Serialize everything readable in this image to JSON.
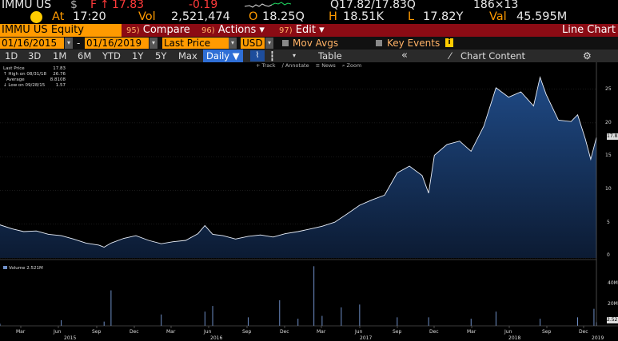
{
  "quote": {
    "ticker": "IMMU US",
    "currency": "$",
    "price_prefix": "F",
    "arrow": "↑",
    "price": "17.83",
    "change": "-0.19",
    "bid_ask": "Q17.82/17.83Q",
    "size": "186×13",
    "time_label": "At",
    "time": "17:20",
    "vol_label": "Vol",
    "volume": "2,521,474",
    "open_label": "O",
    "open": "18.25Q",
    "high_label": "H",
    "high": "18.51K",
    "low_label": "L",
    "low": "17.82Y",
    "val_label": "Val",
    "value": "45.595M"
  },
  "menubar": {
    "ticker_box": "IMMU US Equity",
    "compare_num": "95)",
    "compare": "Compare",
    "actions_num": "96)",
    "actions": "Actions ▾",
    "edit_num": "97)",
    "edit": "Edit ▾",
    "title": "Line Chart"
  },
  "settings": {
    "start_date": "01/16/2015",
    "dash": "-",
    "end_date": "01/16/2019",
    "field": "Last Price",
    "currency": "USD",
    "mov_avgs": "Mov Avgs",
    "key_events": "Key Events"
  },
  "toolbar": {
    "periods": [
      "1D",
      "3D",
      "1M",
      "6M",
      "YTD",
      "1Y",
      "5Y",
      "Max"
    ],
    "interval": "Daily ▼",
    "table": "Table",
    "collapse": "«",
    "chart_content": "Chart Content",
    "settings_icon": "gear-icon"
  },
  "chart_tools": [
    "+ Track",
    "∕ Annotate",
    "≡ News",
    "⌕ Zoom"
  ],
  "legend": {
    "last_price_label": "Last Price",
    "last_price": "17.83",
    "high_label": "↑ High on 08/31/18",
    "high": "26.76",
    "average_label": "Average",
    "average": "8.8108",
    "low_label": "↓ Low on 09/28/15",
    "low": "1.57"
  },
  "volume_legend": "Volume 2.521M",
  "y_axis_price": [
    "25",
    "20",
    "15",
    "10",
    "5",
    "0"
  ],
  "y_axis_volume": [
    "40M",
    "20M"
  ],
  "last_price_tag": "17.83",
  "last_volume_tag": "2.52",
  "x_months": [
    "Mar",
    "Jun",
    "Sep",
    "Dec",
    "Mar",
    "Jun",
    "Sep",
    "Dec",
    "Mar",
    "Jun",
    "Sep",
    "Dec",
    "Mar",
    "Jun",
    "Sep",
    "Dec"
  ],
  "x_years": [
    "2015",
    "2016",
    "2017",
    "2018",
    "2019"
  ],
  "colors": {
    "accent": "#ff9a00",
    "menubar": "#8b0b14",
    "line": "#e8eef8",
    "area_top": "#1f4a86",
    "area_bottom": "#0c1b33",
    "volume": "#6f8fc7"
  },
  "chart_data": {
    "type": "area",
    "title": "",
    "x_start": "2015-01-16",
    "x_end": "2019-01-16",
    "ylim": [
      0,
      28.5
    ],
    "price_series": [
      {
        "x": "2015-01-16",
        "y": 4.9
      },
      {
        "x": "2015-02-15",
        "y": 4.3
      },
      {
        "x": "2015-03-15",
        "y": 3.9
      },
      {
        "x": "2015-04-15",
        "y": 4.0
      },
      {
        "x": "2015-05-15",
        "y": 3.5
      },
      {
        "x": "2015-06-15",
        "y": 3.3
      },
      {
        "x": "2015-07-15",
        "y": 2.8
      },
      {
        "x": "2015-08-15",
        "y": 2.2
      },
      {
        "x": "2015-09-15",
        "y": 1.9
      },
      {
        "x": "2015-09-28",
        "y": 1.6
      },
      {
        "x": "2015-10-15",
        "y": 2.2
      },
      {
        "x": "2015-11-15",
        "y": 2.9
      },
      {
        "x": "2015-12-15",
        "y": 3.3
      },
      {
        "x": "2016-01-15",
        "y": 2.6
      },
      {
        "x": "2016-02-15",
        "y": 2.1
      },
      {
        "x": "2016-03-15",
        "y": 2.4
      },
      {
        "x": "2016-04-15",
        "y": 2.6
      },
      {
        "x": "2016-05-15",
        "y": 3.6
      },
      {
        "x": "2016-06-01",
        "y": 4.8
      },
      {
        "x": "2016-06-20",
        "y": 3.5
      },
      {
        "x": "2016-07-15",
        "y": 3.3
      },
      {
        "x": "2016-08-15",
        "y": 2.8
      },
      {
        "x": "2016-09-15",
        "y": 3.2
      },
      {
        "x": "2016-10-15",
        "y": 3.4
      },
      {
        "x": "2016-11-15",
        "y": 3.1
      },
      {
        "x": "2016-12-15",
        "y": 3.6
      },
      {
        "x": "2017-01-15",
        "y": 3.9
      },
      {
        "x": "2017-02-15",
        "y": 4.3
      },
      {
        "x": "2017-03-15",
        "y": 4.7
      },
      {
        "x": "2017-04-15",
        "y": 5.3
      },
      {
        "x": "2017-05-15",
        "y": 6.5
      },
      {
        "x": "2017-06-15",
        "y": 7.8
      },
      {
        "x": "2017-07-15",
        "y": 8.6
      },
      {
        "x": "2017-08-15",
        "y": 9.3
      },
      {
        "x": "2017-09-15",
        "y": 12.6
      },
      {
        "x": "2017-10-15",
        "y": 13.6
      },
      {
        "x": "2017-11-15",
        "y": 12.2
      },
      {
        "x": "2017-12-01",
        "y": 9.6
      },
      {
        "x": "2017-12-15",
        "y": 15.2
      },
      {
        "x": "2018-01-15",
        "y": 16.8
      },
      {
        "x": "2018-02-15",
        "y": 17.3
      },
      {
        "x": "2018-03-15",
        "y": 15.8
      },
      {
        "x": "2018-04-15",
        "y": 19.5
      },
      {
        "x": "2018-05-15",
        "y": 25.2
      },
      {
        "x": "2018-06-15",
        "y": 23.8
      },
      {
        "x": "2018-07-15",
        "y": 24.6
      },
      {
        "x": "2018-08-15",
        "y": 22.5
      },
      {
        "x": "2018-08-31",
        "y": 26.76
      },
      {
        "x": "2018-09-15",
        "y": 24.2
      },
      {
        "x": "2018-10-15",
        "y": 20.4
      },
      {
        "x": "2018-11-15",
        "y": 20.2
      },
      {
        "x": "2018-12-01",
        "y": 21.2
      },
      {
        "x": "2018-12-20",
        "y": 17.6
      },
      {
        "x": "2019-01-02",
        "y": 14.6
      },
      {
        "x": "2019-01-16",
        "y": 17.83
      }
    ],
    "volume_ylim": [
      0,
      45
    ],
    "volume_series": [
      {
        "x": "2015-01-16",
        "y": 1.5
      },
      {
        "x": "2015-06-15",
        "y": 4
      },
      {
        "x": "2015-09-28",
        "y": 3
      },
      {
        "x": "2015-10-15",
        "y": 25
      },
      {
        "x": "2016-02-15",
        "y": 8
      },
      {
        "x": "2016-06-01",
        "y": 10
      },
      {
        "x": "2016-06-20",
        "y": 14
      },
      {
        "x": "2016-09-15",
        "y": 6
      },
      {
        "x": "2016-12-01",
        "y": 18
      },
      {
        "x": "2017-01-15",
        "y": 5
      },
      {
        "x": "2017-02-23",
        "y": 42
      },
      {
        "x": "2017-03-15",
        "y": 7
      },
      {
        "x": "2017-05-01",
        "y": 13
      },
      {
        "x": "2017-06-15",
        "y": 15
      },
      {
        "x": "2017-09-15",
        "y": 6
      },
      {
        "x": "2017-12-01",
        "y": 6
      },
      {
        "x": "2018-03-15",
        "y": 5
      },
      {
        "x": "2018-05-15",
        "y": 10
      },
      {
        "x": "2018-08-31",
        "y": 5
      },
      {
        "x": "2018-12-01",
        "y": 6
      },
      {
        "x": "2019-01-10",
        "y": 12
      },
      {
        "x": "2019-01-16",
        "y": 2.5
      }
    ]
  }
}
